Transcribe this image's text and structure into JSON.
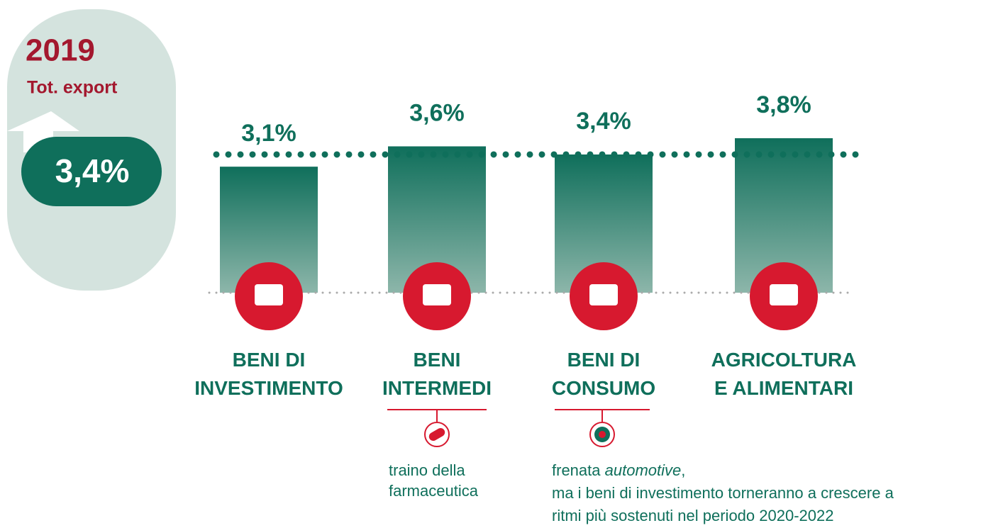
{
  "chart_data": {
    "type": "bar",
    "categories": [
      "BENI DI INVESTIMENTO",
      "BENI INTERMEDI",
      "BENI DI CONSUMO",
      "AGRICOLTURA E ALIMENTARI"
    ],
    "values": [
      3.1,
      3.6,
      3.4,
      3.8
    ],
    "value_labels": [
      "3,1%",
      "3,6%",
      "3,4%",
      "3,8%"
    ],
    "color": "#0f6f5b",
    "ylim": [
      0,
      7.2
    ],
    "total": {
      "year": "2019",
      "label": "Tot. export",
      "value": 3.4,
      "value_label": "3,4%"
    },
    "notes": {
      "intermedi": [
        "traino della",
        "farmaceutica"
      ],
      "consumo": {
        "prefix": "frenata",
        "italic": "automotive",
        "suffix": ",",
        "lines": [
          "ma i beni di investimento torneranno a crescere a",
          "ritmi più sostenuti nel periodo 2020-2022"
        ]
      }
    }
  }
}
